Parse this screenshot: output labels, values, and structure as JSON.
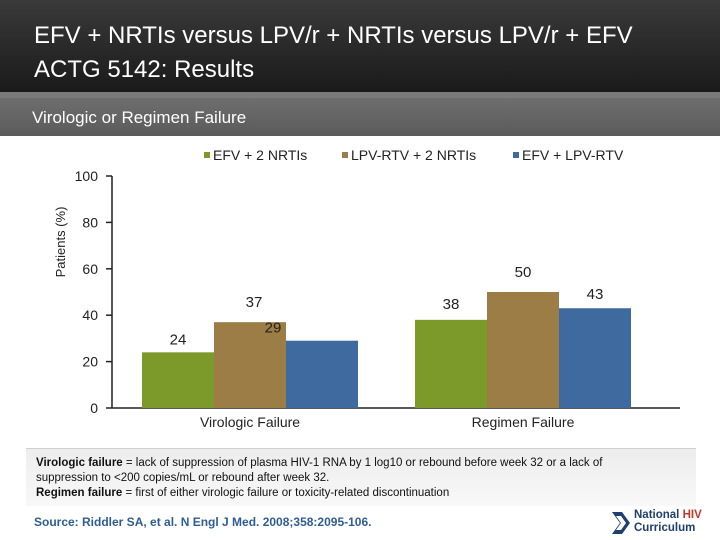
{
  "header": {
    "title_line1": "EFV + NRTIs versus LPV/r + NRTIs versus LPV/r + EFV",
    "title_line2": "ACTG 5142: Results"
  },
  "subheader": {
    "title": "Virologic or Regimen Failure"
  },
  "colors": {
    "efv_nrti": "#7c9a2a",
    "lpv_nrti": "#9c7d45",
    "efv_lpv": "#3f6aa0"
  },
  "chart_data": {
    "type": "bar",
    "title": "",
    "xlabel": "",
    "ylabel": "Patients (%)",
    "ylim": [
      0,
      100
    ],
    "yticks": [
      0,
      20,
      40,
      60,
      80,
      100
    ],
    "categories": [
      "Virologic Failure",
      "Regimen Failure"
    ],
    "series": [
      {
        "name": "EFV + 2 NRTIs",
        "values": [
          24,
          38
        ]
      },
      {
        "name": "LPV-RTV + 2 NRTIs",
        "values": [
          37,
          50
        ]
      },
      {
        "name": "EFV + LPV-RTV",
        "values": [
          29,
          43
        ]
      }
    ],
    "legend_position": "top"
  },
  "footnote": {
    "virologic_term": "Virologic failure",
    "virologic_def_1": " = lack of suppression of plasma HIV-1 RNA by 1 log10 or rebound before week 32 or a lack of",
    "virologic_def_2": "suppression to <200 copies/mL or rebound after week 32.",
    "regimen_term": "Regimen failure",
    "regimen_def": " = first of either virologic failure or toxicity-related discontinuation"
  },
  "source": "Source: Riddler SA, et al. N Engl J Med. 2008;358:2095-106.",
  "logo": {
    "word1": "National ",
    "word2": "HIV",
    "word3": "Curriculum"
  }
}
